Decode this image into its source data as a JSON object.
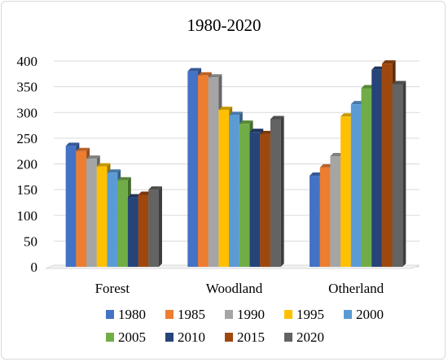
{
  "chart_data": {
    "type": "bar",
    "title": "1980-2020",
    "xlabel": "",
    "ylabel": "",
    "categories": [
      "Forest",
      "Woodland",
      "Otherland"
    ],
    "ylim": [
      0,
      400
    ],
    "yticks": [
      0,
      50,
      100,
      150,
      200,
      250,
      300,
      350,
      400
    ],
    "grid": true,
    "legend_position": "bottom",
    "series": [
      {
        "name": "1980",
        "color": "#4472C4",
        "values": [
          235,
          380,
          177
        ]
      },
      {
        "name": "1985",
        "color": "#ED7D31",
        "values": [
          225,
          372,
          193
        ]
      },
      {
        "name": "1990",
        "color": "#A5A5A5",
        "values": [
          210,
          368,
          215
        ]
      },
      {
        "name": "1995",
        "color": "#FFC000",
        "values": [
          195,
          305,
          292
        ]
      },
      {
        "name": "2000",
        "color": "#5B9BD5",
        "values": [
          183,
          295,
          316
        ]
      },
      {
        "name": "2005",
        "color": "#70AD47",
        "values": [
          168,
          278,
          347
        ]
      },
      {
        "name": "2010",
        "color": "#264478",
        "values": [
          135,
          262,
          383
        ]
      },
      {
        "name": "2015",
        "color": "#9E480E",
        "values": [
          140,
          258,
          395
        ]
      },
      {
        "name": "2020",
        "color": "#636363",
        "values": [
          150,
          287,
          355
        ]
      }
    ]
  }
}
